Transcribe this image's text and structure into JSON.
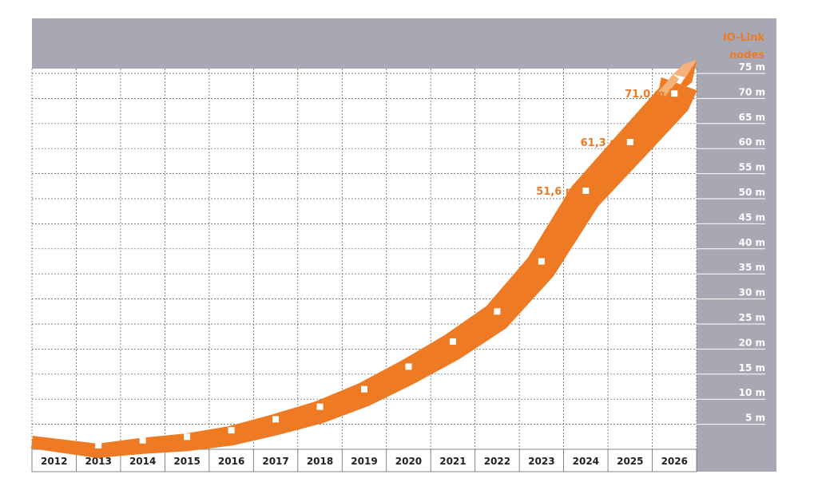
{
  "chart_data": {
    "type": "line",
    "x": [
      "2012",
      "2013",
      "2014",
      "2015",
      "2016",
      "2017",
      "2018",
      "2019",
      "2020",
      "2021",
      "2022",
      "2023",
      "2024",
      "2025",
      "2026"
    ],
    "series": [
      {
        "values": [
          null,
          0.8,
          1.8,
          2.5,
          3.8,
          6.0,
          8.5,
          12.0,
          16.5,
          21.5,
          27.5,
          37.5,
          51.6,
          61.3,
          71.0
        ]
      }
    ],
    "annotations": [
      {
        "x": "2024",
        "text": "51,6 m"
      },
      {
        "x": "2025",
        "text": "61,3 m"
      },
      {
        "x": "2026",
        "text": "71,0 m"
      }
    ],
    "y_ticks": [
      "5 m",
      "10 m",
      "15 m",
      "20 m",
      "25 m",
      "30 m",
      "35 m",
      "40 m",
      "45 m",
      "50 m",
      "55 m",
      "60 m",
      "65 m",
      "70 m",
      "75 m"
    ],
    "y_tick_values": [
      5,
      10,
      15,
      20,
      25,
      30,
      35,
      40,
      45,
      50,
      55,
      60,
      65,
      70,
      75
    ],
    "ylim": [
      0,
      75
    ],
    "ylabel": "IO-Link nodes",
    "grid": true,
    "colors": {
      "arrow": "#ee7a23",
      "arrow_tip": "#f4b27a",
      "panel": "#a8a8b4",
      "grid": "#555555",
      "label": "#ee7a23"
    }
  }
}
